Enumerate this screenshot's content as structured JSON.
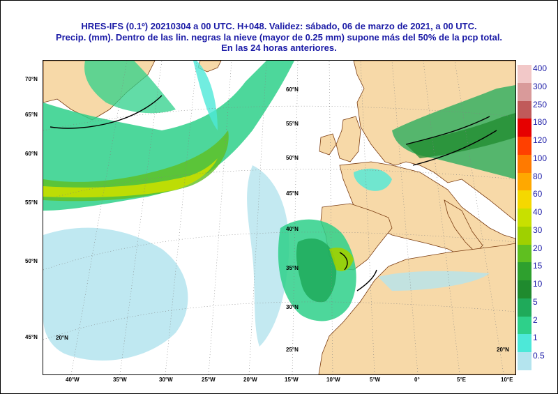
{
  "title": {
    "line1": "HRES-IFS (0.1º) 20210304 a 00 UTC.  H+048. Validez: sábado, 06 de marzo de 2021,  a  00 UTC.",
    "line2": "Precip. (mm). Dentro de las lin. negras la nieve (mayor de 0.25 mm) supone más del 50% de la pcp total.",
    "line3": "En las 24 horas anteriores."
  },
  "colors": {
    "sea": "#ffffff",
    "land": "#f7d9a8",
    "border": "#000000",
    "title": "#1a1aa6"
  },
  "legend": {
    "labels": [
      "400",
      "300",
      "250",
      "180",
      "120",
      "100",
      "80",
      "60",
      "40",
      "30",
      "20",
      "15",
      "10",
      "5",
      "2",
      "1",
      "0.5"
    ],
    "colors": [
      "#f2c8c8",
      "#d99a9a",
      "#c05a5a",
      "#e60000",
      "#ff4000",
      "#ff7a00",
      "#ffa800",
      "#f5d800",
      "#c8e000",
      "#9fd000",
      "#5fbf20",
      "#2ea02e",
      "#1f8a2e",
      "#1faa5a",
      "#2ed08a",
      "#4de8d8",
      "#b4e4ee"
    ]
  },
  "axes": {
    "bottom_lon": [
      "40°W",
      "35°W",
      "30°W",
      "25°W",
      "20°W",
      "15°W",
      "10°W",
      "5°W",
      "0°",
      "5°E",
      "10°E"
    ],
    "left_lat": [
      "70°N",
      "65°N",
      "60°N",
      "55°N",
      "50°N",
      "45°N"
    ],
    "inner_lat": [
      "60°N",
      "55°N",
      "50°N",
      "45°N",
      "40°N",
      "35°N",
      "30°N",
      "25°N",
      "20°N",
      "20°N"
    ]
  }
}
